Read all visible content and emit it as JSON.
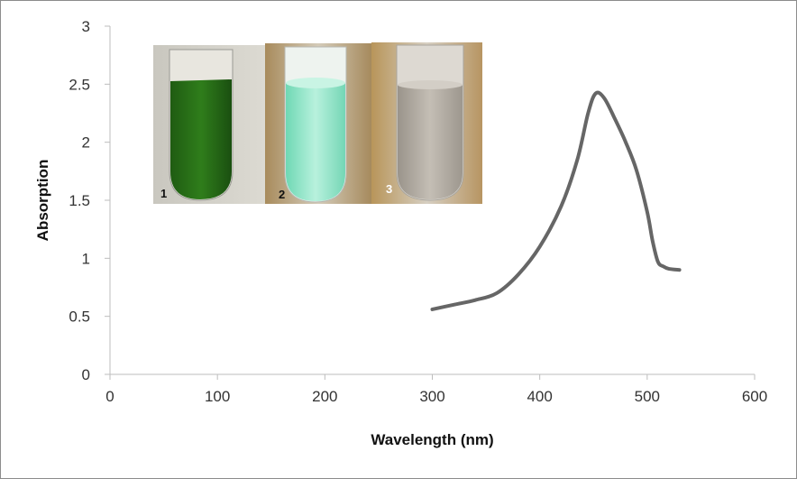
{
  "chart_data": {
    "type": "line",
    "title": "",
    "xlabel": "Wavelength (nm)",
    "ylabel": "Absorption",
    "xlim": [
      0,
      600
    ],
    "ylim": [
      0,
      3
    ],
    "xticks": [
      0,
      100,
      200,
      300,
      400,
      500,
      600
    ],
    "yticks": [
      "0",
      "0.5",
      "1",
      "1.5",
      "2",
      "2.5",
      "3"
    ],
    "grid": false,
    "legend": "none",
    "series": [
      {
        "color": "#666666",
        "x": [
          300,
          320,
          340,
          360,
          380,
          400,
          420,
          435,
          445,
          452,
          460,
          470,
          480,
          490,
          500,
          505,
          510,
          515,
          520,
          530
        ],
        "y": [
          0.56,
          0.6,
          0.64,
          0.7,
          0.86,
          1.1,
          1.45,
          1.85,
          2.25,
          2.42,
          2.38,
          2.2,
          2.0,
          1.76,
          1.4,
          1.15,
          0.97,
          0.93,
          0.91,
          0.9
        ]
      }
    ],
    "inset_images": [
      {
        "label": "1",
        "content": "test tube with dark green liquid",
        "colors": [
          "#1f5c12",
          "#2f7d1b"
        ]
      },
      {
        "label": "2",
        "content": "test tube with light turquoise suspension",
        "colors": [
          "#86e3c4",
          "#b8f1dd"
        ]
      },
      {
        "label": "3",
        "content": "test tube with grey suspension",
        "colors": [
          "#a9a39a",
          "#c4beb5"
        ]
      }
    ]
  }
}
